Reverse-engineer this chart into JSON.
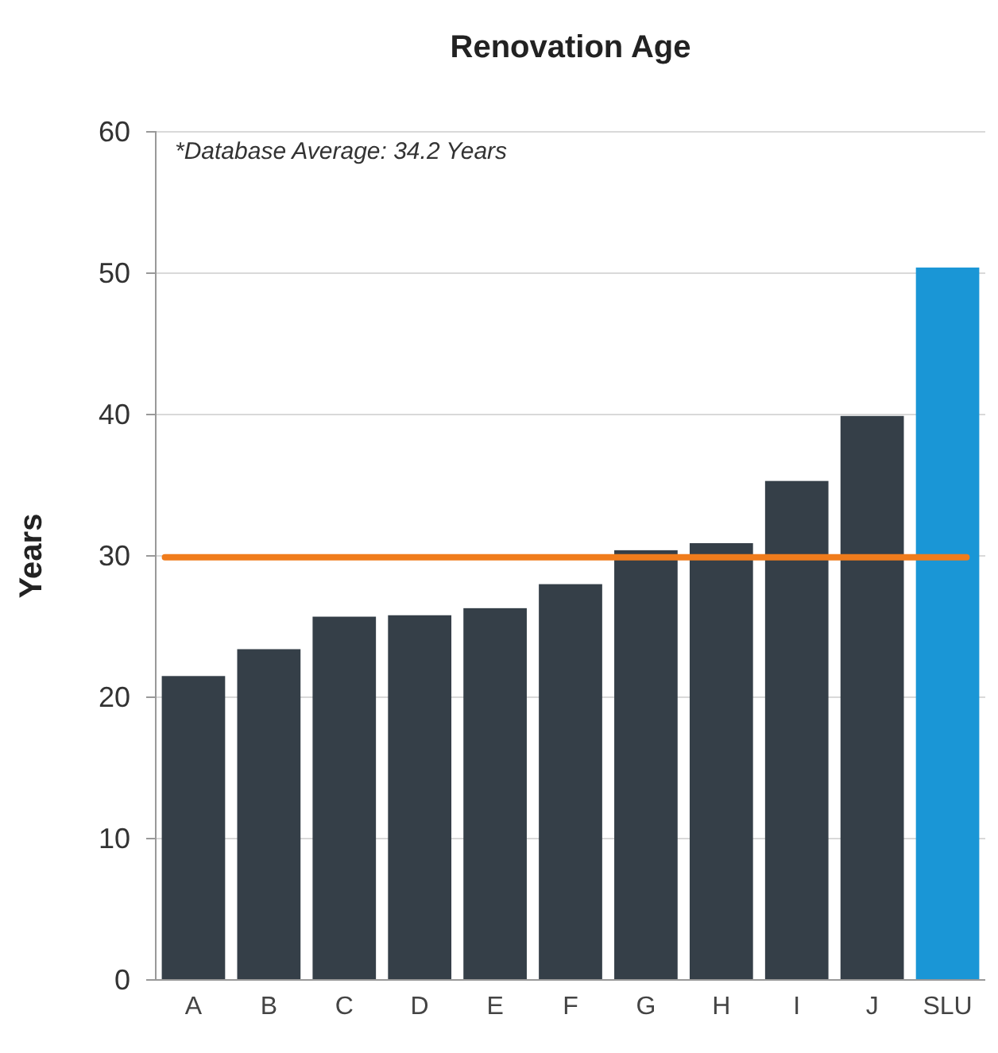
{
  "chart_data": {
    "type": "bar",
    "title": "Renovation Age",
    "ylabel": "Years",
    "categories": [
      "A",
      "B",
      "C",
      "D",
      "E",
      "F",
      "G",
      "H",
      "I",
      "J",
      "SLU"
    ],
    "values": [
      21.5,
      23.4,
      25.7,
      25.8,
      26.3,
      28.0,
      30.4,
      30.9,
      35.3,
      39.9,
      50.4
    ],
    "colors": [
      "#353f48",
      "#353f48",
      "#353f48",
      "#353f48",
      "#353f48",
      "#353f48",
      "#353f48",
      "#353f48",
      "#353f48",
      "#353f48",
      "#1a96d6"
    ],
    "ylim": [
      0,
      60
    ],
    "yticks": [
      0,
      10,
      20,
      30,
      40,
      50,
      60
    ],
    "grid": "y",
    "ref_lines": [
      {
        "axis": "y",
        "value": 29.9,
        "color": "#f07c1c"
      }
    ],
    "annotations": [
      "*Database Average: 34.2 Years"
    ]
  }
}
